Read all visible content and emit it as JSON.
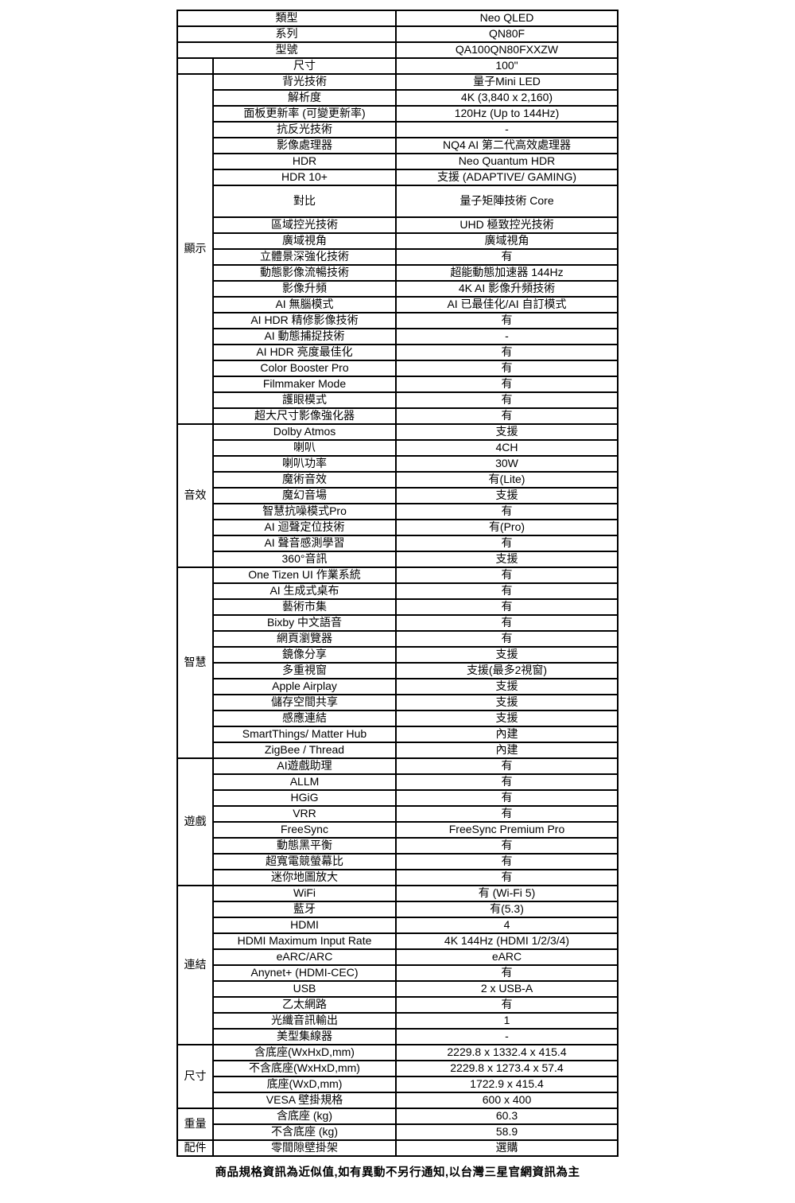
{
  "table": {
    "header_rows": [
      {
        "label": "類型",
        "value": "Neo QLED"
      },
      {
        "label": "系列",
        "value": "QN80F"
      },
      {
        "label": "型號",
        "value": "QA100QN80FXXZW"
      }
    ],
    "sections": [
      {
        "name": "size",
        "category": "",
        "rows": [
          {
            "label": "尺寸",
            "value": "100\""
          }
        ]
      },
      {
        "name": "display",
        "category": "顯示",
        "rows": [
          {
            "label": "背光技術",
            "value": "量子Mini LED"
          },
          {
            "label": "解析度",
            "value": "4K (3,840 x 2,160)"
          },
          {
            "label": "面板更新率 (可變更新率)",
            "value": "120Hz (Up to 144Hz)"
          },
          {
            "label": "抗反光技術",
            "value": "-"
          },
          {
            "label": "影像處理器",
            "value": "NQ4 AI 第二代高效處理器"
          },
          {
            "label": "HDR",
            "value": "Neo Quantum HDR"
          },
          {
            "label": "HDR 10+",
            "value": "支援 (ADAPTIVE/ GAMING)"
          },
          {
            "label": "對比",
            "value": "量子矩陣技術 Core",
            "tall": true
          },
          {
            "label": "區域控光技術",
            "value": "UHD 極致控光技術"
          },
          {
            "label": "廣域視角",
            "value": "廣域視角"
          },
          {
            "label": "立體景深強化技術",
            "value": "有"
          },
          {
            "label": "動態影像流暢技術",
            "value": "超能動態加速器 144Hz"
          },
          {
            "label": "影像升頻",
            "value": "4K AI 影像升頻技術"
          },
          {
            "label": "AI 無腦模式",
            "value": "AI 已最佳化/AI 自訂模式"
          },
          {
            "label": "AI HDR 精修影像技術",
            "value": "有"
          },
          {
            "label": "AI 動態捕捉技術",
            "value": "-"
          },
          {
            "label": "AI HDR 亮度最佳化",
            "value": "有"
          },
          {
            "label": "Color Booster Pro",
            "value": "有"
          },
          {
            "label": "Filmmaker Mode",
            "value": "有"
          },
          {
            "label": "護眼模式",
            "value": "有"
          },
          {
            "label": "超大尺寸影像強化器",
            "value": "有"
          }
        ]
      },
      {
        "name": "audio",
        "category": "音效",
        "rows": [
          {
            "label": "Dolby Atmos",
            "value": "支援"
          },
          {
            "label": "喇叭",
            "value": "4CH"
          },
          {
            "label": "喇叭功率",
            "value": "30W"
          },
          {
            "label": "魔術音效",
            "value": "有(Lite)"
          },
          {
            "label": "魔幻音場",
            "value": "支援"
          },
          {
            "label": "智慧抗噪模式Pro",
            "value": "有"
          },
          {
            "label": "AI 迴聲定位技術",
            "value": "有(Pro)"
          },
          {
            "label": "AI 聲音感測學習",
            "value": "有"
          },
          {
            "label": "360°音訊",
            "value": "支援"
          }
        ]
      },
      {
        "name": "smart",
        "category": "智慧",
        "rows": [
          {
            "label": "One Tizen UI 作業系統",
            "value": "有"
          },
          {
            "label": "AI 生成式桌布",
            "value": "有"
          },
          {
            "label": "藝術市集",
            "value": "有"
          },
          {
            "label": "Bixby 中文語音",
            "value": "有"
          },
          {
            "label": "網頁瀏覽器",
            "value": "有"
          },
          {
            "label": "鏡像分享",
            "value": "支援"
          },
          {
            "label": "多重視窗",
            "value": "支援(最多2視窗)"
          },
          {
            "label": "Apple Airplay",
            "value": "支援"
          },
          {
            "label": "儲存空間共享",
            "value": "支援"
          },
          {
            "label": "感應連結",
            "value": "支援"
          },
          {
            "label": "SmartThings/ Matter Hub",
            "value": "內建"
          },
          {
            "label": "ZigBee / Thread",
            "value": "內建"
          }
        ]
      },
      {
        "name": "gaming",
        "category": "遊戲",
        "rows": [
          {
            "label": "AI遊戲助理",
            "value": "有"
          },
          {
            "label": "ALLM",
            "value": "有"
          },
          {
            "label": "HGiG",
            "value": "有"
          },
          {
            "label": "VRR",
            "value": "有"
          },
          {
            "label": "FreeSync",
            "value": "FreeSync Premium Pro"
          },
          {
            "label": "動態黑平衡",
            "value": "有"
          },
          {
            "label": "超寬電競螢幕比",
            "value": "有"
          },
          {
            "label": "迷你地圖放大",
            "value": "有"
          }
        ]
      },
      {
        "name": "connectivity",
        "category": "連結",
        "rows": [
          {
            "label": "WiFi",
            "value": "有 (Wi-Fi 5)"
          },
          {
            "label": "藍牙",
            "value": "有(5.3)"
          },
          {
            "label": "HDMI",
            "value": "4"
          },
          {
            "label": "HDMI Maximum Input Rate",
            "value": "4K 144Hz (HDMI 1/2/3/4)"
          },
          {
            "label": "eARC/ARC",
            "value": "eARC"
          },
          {
            "label": "Anynet+ (HDMI-CEC)",
            "value": "有"
          },
          {
            "label": "USB",
            "value": "2 x USB-A"
          },
          {
            "label": "乙太網路",
            "value": "有"
          },
          {
            "label": "光纖音訊輸出",
            "value": "1"
          },
          {
            "label": "美型集線器",
            "value": "-"
          }
        ]
      },
      {
        "name": "dimensions",
        "category": "尺寸",
        "rows": [
          {
            "label": "含底座(WxHxD,mm)",
            "value": "2229.8 x 1332.4 x 415.4"
          },
          {
            "label": "不含底座(WxHxD,mm)",
            "value": "2229.8 x 1273.4 x 57.4"
          },
          {
            "label": "底座(WxD,mm)",
            "value": "1722.9 x 415.4"
          },
          {
            "label": "VESA 壁掛規格",
            "value": "600 x 400"
          }
        ]
      },
      {
        "name": "weight",
        "category": "重量",
        "rows": [
          {
            "label": "含底座 (kg)",
            "value": "60.3"
          },
          {
            "label": "不含底座 (kg)",
            "value": "58.9"
          }
        ]
      },
      {
        "name": "accessories",
        "category": "配件",
        "rows": [
          {
            "label": "零間隙壁掛架",
            "value": "選購"
          }
        ]
      }
    ]
  },
  "footer": {
    "note": "商品規格資訊為近似值,如有異動不另行通知,以台灣三星官網資訊為主"
  },
  "colors": {
    "border": "#000000",
    "text": "#000000",
    "background": "#ffffff"
  }
}
